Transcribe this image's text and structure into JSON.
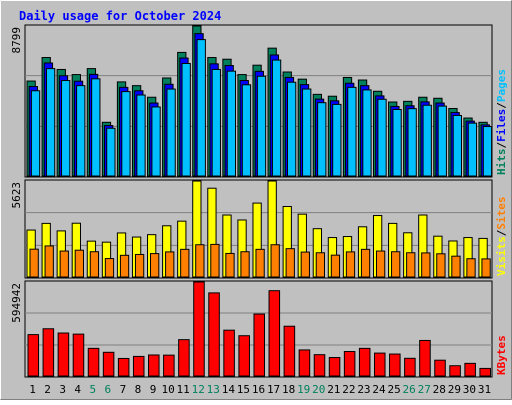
{
  "title": "Daily usage for October 2024",
  "colors": {
    "background": "#c0c0c0",
    "title": "#0000ff",
    "hits": "#00805c",
    "files": "#0000ff",
    "pages": "#00c0ff",
    "visits": "#ffff00",
    "sites": "#ff8000",
    "kbytes": "#ff0000",
    "weekend_label": "#00805c",
    "weekday_label": "#000000"
  },
  "chart_data": [
    {
      "type": "bar",
      "title": "Daily usage for October 2024",
      "panel": "hits-files-pages",
      "categories": [
        "1",
        "2",
        "3",
        "4",
        "5",
        "6",
        "7",
        "8",
        "9",
        "10",
        "11",
        "12",
        "13",
        "14",
        "15",
        "16",
        "17",
        "18",
        "19",
        "20",
        "21",
        "22",
        "23",
        "24",
        "25",
        "26",
        "27",
        "28",
        "29",
        "30",
        "31"
      ],
      "ylim": [
        0,
        8799
      ],
      "ytick": "8799",
      "axis_labels": [
        {
          "text": "Hits",
          "color": "#00805c"
        },
        {
          "text": "/",
          "color": "#000000"
        },
        {
          "text": "Files",
          "color": "#0000ff"
        },
        {
          "text": "/",
          "color": "#000000"
        },
        {
          "text": "Pages",
          "color": "#00c0ff"
        }
      ],
      "series": [
        {
          "name": "Hits",
          "color": "#00805c",
          "values": [
            5570,
            6950,
            6250,
            5950,
            6300,
            3150,
            5520,
            5300,
            4620,
            5750,
            7250,
            8799,
            6950,
            6850,
            5950,
            6500,
            7500,
            6100,
            5680,
            4790,
            4680,
            5780,
            5630,
            4970,
            4340,
            4380,
            4620,
            4560,
            3960,
            3400,
            3150
          ]
        },
        {
          "name": "Files",
          "color": "#0000ff",
          "values": [
            5250,
            6630,
            5880,
            5560,
            5960,
            2960,
            5200,
            5000,
            4280,
            5380,
            6920,
            8350,
            6580,
            6480,
            5600,
            6140,
            7100,
            5780,
            5360,
            4510,
            4410,
            5440,
            5300,
            4700,
            4080,
            4120,
            4350,
            4280,
            3720,
            3220,
            3000
          ]
        },
        {
          "name": "Pages",
          "color": "#00c0ff",
          "values": [
            5000,
            6300,
            5600,
            5300,
            5700,
            2800,
            4950,
            4750,
            4050,
            5100,
            6600,
            8000,
            6250,
            6150,
            5350,
            5850,
            6800,
            5500,
            5100,
            4300,
            4200,
            5200,
            5050,
            4500,
            3900,
            3950,
            4150,
            4100,
            3550,
            3100,
            2900
          ]
        }
      ]
    },
    {
      "type": "bar",
      "panel": "visits-sites",
      "categories": [
        "1",
        "2",
        "3",
        "4",
        "5",
        "6",
        "7",
        "8",
        "9",
        "10",
        "11",
        "12",
        "13",
        "14",
        "15",
        "16",
        "17",
        "18",
        "19",
        "20",
        "21",
        "22",
        "23",
        "24",
        "25",
        "26",
        "27",
        "28",
        "29",
        "30",
        "31"
      ],
      "ylim": [
        0,
        5623
      ],
      "ytick": "5623",
      "axis_labels": [
        {
          "text": "Visits",
          "color": "#ffff00"
        },
        {
          "text": "/",
          "color": "#000000"
        },
        {
          "text": "Sites",
          "color": "#ff8000"
        }
      ],
      "series": [
        {
          "name": "Visits",
          "color": "#ffff00",
          "values": [
            2750,
            3140,
            2700,
            3150,
            2100,
            2040,
            2580,
            2340,
            2480,
            3000,
            3270,
            5620,
            5200,
            3630,
            3340,
            4330,
            5623,
            4130,
            3680,
            2830,
            2310,
            2370,
            2940,
            3600,
            3140,
            2590,
            3630,
            2390,
            2110,
            2310,
            2260
          ]
        },
        {
          "name": "Sites",
          "color": "#ff8000",
          "values": [
            1630,
            1820,
            1520,
            1570,
            1480,
            1080,
            1270,
            1320,
            1370,
            1470,
            1620,
            1890,
            1910,
            1380,
            1480,
            1620,
            1890,
            1660,
            1460,
            1420,
            1280,
            1470,
            1620,
            1520,
            1480,
            1420,
            1410,
            1360,
            1220,
            1070,
            1060
          ]
        }
      ]
    },
    {
      "type": "bar",
      "panel": "kbytes",
      "categories": [
        "1",
        "2",
        "3",
        "4",
        "5",
        "6",
        "7",
        "8",
        "9",
        "10",
        "11",
        "12",
        "13",
        "14",
        "15",
        "16",
        "17",
        "18",
        "19",
        "20",
        "21",
        "22",
        "23",
        "24",
        "25",
        "26",
        "27",
        "28",
        "29",
        "30",
        "31"
      ],
      "ylim": [
        0,
        594942
      ],
      "ytick": "594942",
      "axis_labels": [
        {
          "text": "KBytes",
          "color": "#ff0000"
        }
      ],
      "series": [
        {
          "name": "KBytes",
          "color": "#ff0000",
          "values": [
            262000,
            299000,
            272000,
            265000,
            175000,
            150000,
            111000,
            124000,
            133000,
            132000,
            230000,
            594942,
            526000,
            290000,
            255000,
            392000,
            540000,
            315000,
            165000,
            135000,
            117000,
            155000,
            175000,
            145000,
            139000,
            112000,
            225000,
            100000,
            65000,
            80000,
            48000
          ]
        }
      ]
    }
  ]
}
